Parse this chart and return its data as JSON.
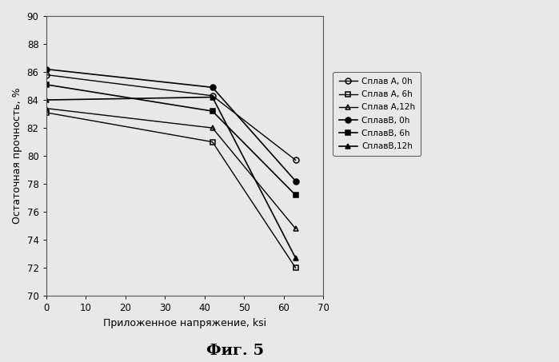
{
  "series": [
    {
      "label": "Сплав А, 0h",
      "x": [
        0,
        42,
        63
      ],
      "y": [
        85.8,
        84.3,
        79.7
      ],
      "marker": "o",
      "fillstyle": "none",
      "color": "#000000",
      "linewidth": 1.0,
      "linestyle": "-"
    },
    {
      "label": "Сплав А, 6h",
      "x": [
        0,
        42,
        63
      ],
      "y": [
        83.1,
        81.0,
        72.0
      ],
      "marker": "s",
      "fillstyle": "none",
      "color": "#000000",
      "linewidth": 1.0,
      "linestyle": "-"
    },
    {
      "label": "Сплав А,12h",
      "x": [
        0,
        42,
        63
      ],
      "y": [
        83.4,
        82.0,
        74.8
      ],
      "marker": "^",
      "fillstyle": "none",
      "color": "#000000",
      "linewidth": 1.0,
      "linestyle": "-"
    },
    {
      "label": "СплавВ, 0h",
      "x": [
        0,
        42,
        63
      ],
      "y": [
        86.2,
        84.9,
        78.2
      ],
      "marker": "o",
      "fillstyle": "full",
      "color": "#000000",
      "linewidth": 1.2,
      "linestyle": "-"
    },
    {
      "label": "СплавВ, 6h",
      "x": [
        0,
        42,
        63
      ],
      "y": [
        85.1,
        83.2,
        77.2
      ],
      "marker": "s",
      "fillstyle": "full",
      "color": "#000000",
      "linewidth": 1.2,
      "linestyle": "-"
    },
    {
      "label": "СплавВ,12h",
      "x": [
        0,
        42,
        63
      ],
      "y": [
        84.0,
        84.2,
        72.7
      ],
      "marker": "^",
      "fillstyle": "full",
      "color": "#000000",
      "linewidth": 1.2,
      "linestyle": "-"
    }
  ],
  "legend_labels": [
    "Сплав А, 0h",
    "Сплав А, 6h",
    "Сплав А,12h",
    "СплавВ, 0h",
    "СплавВ, 6h",
    "СплавВ,12h"
  ],
  "xlabel": "Приложенное напряжение, ksi",
  "ylabel": "Остаточная прочность, %",
  "title": "Фиг. 5",
  "xlim": [
    0,
    70
  ],
  "ylim": [
    70,
    90
  ],
  "xticks": [
    0,
    10,
    20,
    30,
    40,
    50,
    60,
    70
  ],
  "yticks": [
    70,
    72,
    74,
    76,
    78,
    80,
    82,
    84,
    86,
    88,
    90
  ],
  "background_color": "#e8e8e8",
  "plot_bg_color": "#e8e8e8",
  "legend_fontsize": 7.5,
  "axis_fontsize": 9,
  "title_fontsize": 14,
  "tick_fontsize": 8.5
}
